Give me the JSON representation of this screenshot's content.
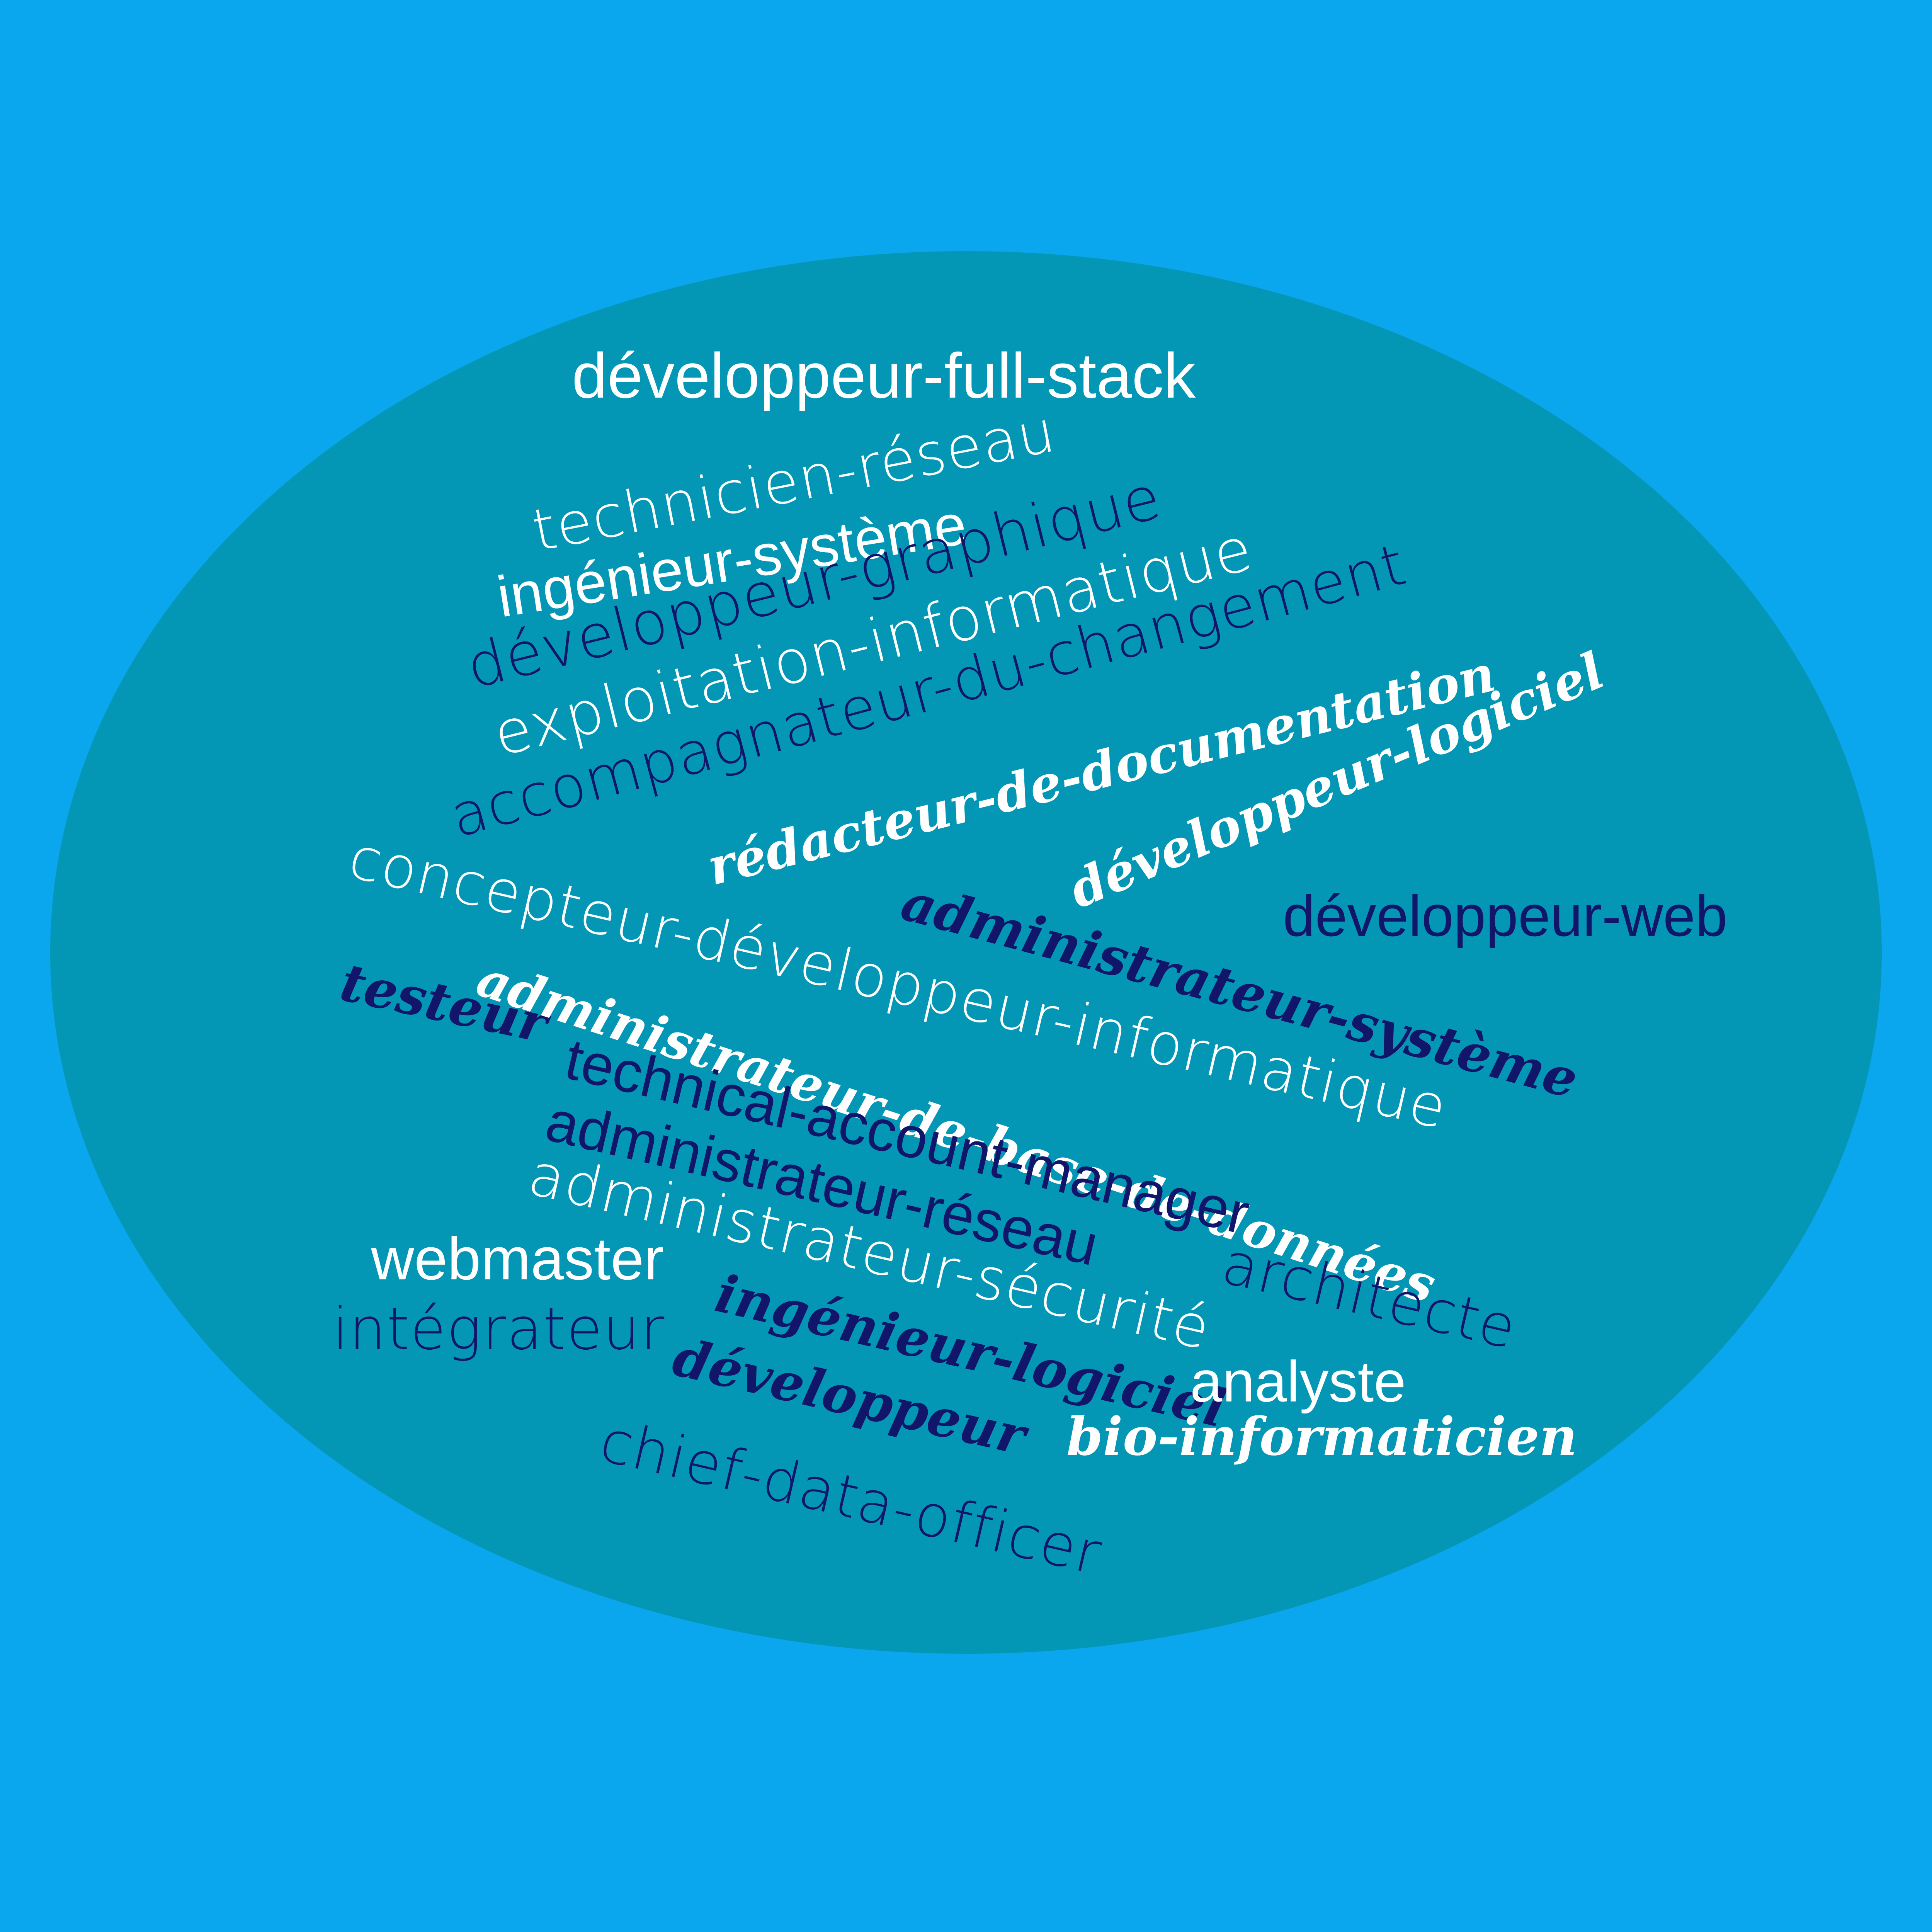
{
  "background_color": "#0aa6ee",
  "cloud_color": "#0497b5",
  "text_colors": {
    "light": "#ffffff",
    "dark": "#11166b"
  },
  "words": [
    "développeur-full-stack",
    "technicien-réseau",
    "ingénieur-système",
    "développeur-graphique",
    "exploitation-informatique",
    "accompagnateur-du-changement",
    "rédacteur-de-documentation",
    "développeur-logiciel",
    "développeur-web",
    "concepteur-développeur-informatique",
    "administrateur-système",
    "testeur",
    "administrateur-de-base-de-données",
    "technical-account-manager",
    "administrateur-réseau",
    "administrateur-sécurité",
    "architecte",
    "webmaster",
    "intégrateur",
    "ingénieur-logiciel",
    "analyste",
    "développeur",
    "bio-informaticien",
    "chief-data-officer"
  ]
}
